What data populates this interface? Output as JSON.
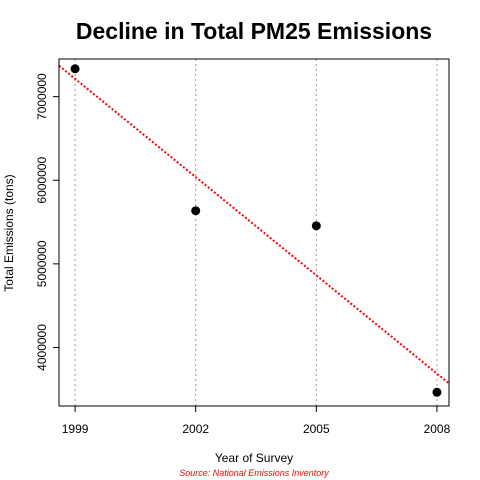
{
  "chart_data": {
    "type": "scatter",
    "title": "Decline in Total PM25 Emissions",
    "xlabel": "Year of Survey",
    "ylabel": "Total Emissions (tons)",
    "source": "Source: National Emissions Inventory",
    "x_ticks": [
      "1999",
      "2002",
      "2005",
      "2008"
    ],
    "y_ticks": [
      "4000000",
      "5000000",
      "6000000",
      "7000000"
    ],
    "xlim": [
      1998.6,
      2008.3
    ],
    "ylim": [
      3300000,
      7450000
    ],
    "grid": "vertical dotted lines at each year",
    "series": [
      {
        "x": [
          1999,
          2002,
          2005,
          2008
        ],
        "y": [
          7332967,
          5635780,
          5454703,
          3464206
        ]
      }
    ],
    "trend_line": {
      "style": "dotted",
      "x_start": 1998.6,
      "y_start": 7370000,
      "x_end": 2008.3,
      "y_end": 3570000
    },
    "colors": {
      "points": "#000000",
      "trend": "#ff0000",
      "grid": "#9a9a9a",
      "source_text": "#ff0000"
    }
  }
}
